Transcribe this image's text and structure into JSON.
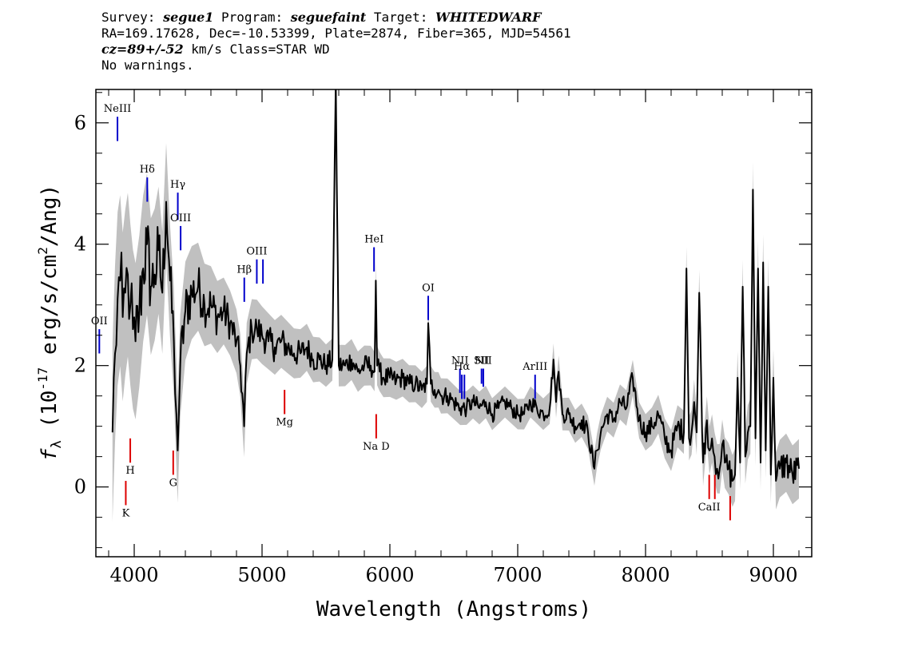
{
  "header": {
    "line1": {
      "survey_label": "Survey: ",
      "survey": "segue1",
      "program_label": " Program: ",
      "program": "seguefaint",
      "target_label": " Target: ",
      "target": "WHITEDWARF"
    },
    "line2": "RA=169.17628, Dec=-10.53399, Plate=2874, Fiber=365, MJD=54561",
    "line3": {
      "cz": "cz=89+/-52",
      "rest": " km/s Class=STAR WD"
    },
    "line4": "No warnings."
  },
  "chart_data": {
    "type": "line",
    "xlabel": "Wavelength (Angstroms)",
    "ylabel_parts": [
      "f",
      "λ",
      " (10",
      "-17",
      " erg/s/cm",
      "2",
      "/Ang)"
    ],
    "xlim": [
      3700,
      9300
    ],
    "ylim": [
      -1.15,
      6.55
    ],
    "x_ticks": [
      4000,
      5000,
      6000,
      7000,
      8000,
      9000
    ],
    "y_ticks": [
      0,
      2,
      4,
      6
    ],
    "x_minor_step": 200,
    "y_minor_step": 0.5,
    "colors": {
      "flux": "#000000",
      "error_band": "#c0c0c0",
      "emission": "#0000cc",
      "absorption": "#dd0000"
    },
    "series": [
      {
        "x": [
          3830,
          3850,
          3870,
          3890,
          3910,
          3930,
          3950,
          3970,
          3990,
          4010,
          4040,
          4070,
          4100,
          4130,
          4160,
          4190,
          4220,
          4250,
          4280,
          4310,
          4330,
          4340,
          4360,
          4400,
          4450,
          4500,
          4550,
          4600,
          4650,
          4700,
          4750,
          4800,
          4830,
          4860,
          4880,
          4920,
          4960,
          5000,
          5050,
          5100,
          5150,
          5200,
          5250,
          5300,
          5350,
          5400,
          5450,
          5500,
          5550,
          5577,
          5600,
          5650,
          5700,
          5750,
          5800,
          5850,
          5880,
          5890,
          5900,
          5920,
          5950,
          6000,
          6050,
          6100,
          6150,
          6200,
          6250,
          6290,
          6300,
          6320,
          6350,
          6380,
          6400,
          6450,
          6500,
          6550,
          6600,
          6650,
          6700,
          6750,
          6800,
          6850,
          6900,
          6950,
          7000,
          7050,
          7100,
          7150,
          7200,
          7250,
          7280,
          7300,
          7320,
          7350,
          7400,
          7450,
          7500,
          7550,
          7600,
          7620,
          7650,
          7700,
          7750,
          7800,
          7850,
          7900,
          7950,
          8000,
          8050,
          8100,
          8150,
          8200,
          8250,
          8300,
          8320,
          8340,
          8360,
          8380,
          8400,
          8420,
          8450,
          8480,
          8500,
          8520,
          8540,
          8560,
          8580,
          8600,
          8620,
          8650,
          8680,
          8700,
          8720,
          8740,
          8760,
          8780,
          8800,
          8820,
          8840,
          8860,
          8880,
          8900,
          8920,
          8940,
          8960,
          8980,
          9000,
          9020,
          9050,
          9100,
          9150,
          9200
        ],
        "y": [
          0.9,
          2.2,
          3.1,
          3.4,
          2.8,
          3.2,
          3.5,
          3.0,
          2.6,
          2.4,
          2.9,
          3.6,
          4.0,
          3.3,
          3.5,
          3.9,
          3.2,
          4.7,
          3.4,
          2.4,
          1.2,
          0.6,
          2.0,
          2.9,
          3.2,
          3.3,
          3.0,
          3.0,
          2.8,
          2.9,
          2.7,
          2.4,
          2.0,
          1.0,
          2.2,
          2.6,
          2.6,
          2.5,
          2.4,
          2.3,
          2.4,
          2.3,
          2.2,
          2.2,
          2.3,
          2.1,
          2.1,
          2.0,
          2.1,
          6.7,
          2.0,
          2.0,
          2.1,
          1.9,
          2.0,
          2.0,
          1.9,
          3.4,
          2.0,
          1.9,
          1.8,
          1.8,
          1.75,
          1.8,
          1.7,
          1.7,
          1.6,
          1.7,
          2.7,
          1.7,
          1.6,
          1.6,
          1.5,
          1.5,
          1.4,
          1.3,
          1.3,
          1.4,
          1.3,
          1.4,
          1.2,
          1.3,
          1.4,
          1.3,
          1.2,
          1.2,
          1.4,
          1.3,
          1.2,
          1.3,
          2.1,
          1.4,
          1.9,
          1.2,
          1.2,
          1.0,
          1.1,
          0.9,
          0.3,
          0.6,
          0.9,
          1.2,
          1.1,
          1.4,
          1.3,
          1.8,
          1.1,
          0.9,
          1.0,
          1.2,
          0.8,
          0.6,
          1.0,
          0.9,
          3.6,
          0.8,
          0.9,
          1.4,
          0.9,
          3.2,
          0.4,
          1.1,
          0.6,
          0.8,
          0.5,
          0.3,
          0.3,
          0.7,
          0.4,
          0.3,
          0.1,
          0.2,
          1.8,
          0.4,
          3.3,
          0.5,
          0.9,
          1.0,
          4.9,
          0.8,
          3.6,
          0.4,
          3.7,
          0.6,
          3.3,
          0.2,
          1.8,
          0.1,
          0.3,
          0.4,
          0.2,
          0.3
        ]
      }
    ],
    "error_band_halfwidth": [
      {
        "x": 3700,
        "v": 1.6
      },
      {
        "x": 4000,
        "v": 1.3
      },
      {
        "x": 4300,
        "v": 0.9
      },
      {
        "x": 4700,
        "v": 0.55
      },
      {
        "x": 5500,
        "v": 0.35
      },
      {
        "x": 7000,
        "v": 0.25
      },
      {
        "x": 8000,
        "v": 0.3
      },
      {
        "x": 8800,
        "v": 0.45
      },
      {
        "x": 9300,
        "v": 0.5
      }
    ],
    "emission_lines": [
      {
        "label": "NeIII",
        "wave": 3869,
        "y0": 5.7,
        "y1": 6.1
      },
      {
        "label": "Hδ",
        "wave": 4102,
        "y0": 4.7,
        "y1": 5.1
      },
      {
        "label": "Hγ",
        "wave": 4341,
        "y0": 4.4,
        "y1": 4.85
      },
      {
        "label": "OIII",
        "wave": 4363,
        "y0": 3.9,
        "y1": 4.3
      },
      {
        "label": "Hβ",
        "wave": 4861,
        "y0": 3.05,
        "y1": 3.45
      },
      {
        "label": "OIII",
        "wave": 4959,
        "y0": 3.35,
        "y1": 3.75
      },
      {
        "label": "",
        "wave": 5007,
        "y0": 3.35,
        "y1": 3.75
      },
      {
        "label": "HeI",
        "wave": 5876,
        "y0": 3.55,
        "y1": 3.95
      },
      {
        "label": "OI",
        "wave": 6300,
        "y0": 2.75,
        "y1": 3.15
      },
      {
        "label": "NII",
        "wave": 6548,
        "y0": 1.55,
        "y1": 1.95
      },
      {
        "label": "Hα",
        "wave": 6563,
        "y0": 1.45,
        "y1": 1.85
      },
      {
        "label": "",
        "wave": 6583,
        "y0": 1.45,
        "y1": 1.85
      },
      {
        "label": "SII",
        "wave": 6717,
        "y0": 1.7,
        "y1": 1.95
      },
      {
        "label": "NII",
        "wave": 6731,
        "y0": 1.65,
        "y1": 1.95
      },
      {
        "label": "ArIII",
        "wave": 7136,
        "y0": 1.45,
        "y1": 1.85
      },
      {
        "label": "OII",
        "wave": 3727,
        "y0": 2.2,
        "y1": 2.6
      }
    ],
    "absorption_lines": [
      {
        "label": "K",
        "wave": 3934,
        "y0": -0.3,
        "y1": 0.1
      },
      {
        "label": "H",
        "wave": 3969,
        "y0": 0.4,
        "y1": 0.8
      },
      {
        "label": "G",
        "wave": 4305,
        "y0": 0.2,
        "y1": 0.6
      },
      {
        "label": "Mg",
        "wave": 5176,
        "y0": 1.2,
        "y1": 1.6
      },
      {
        "label": "Na D",
        "wave": 5893,
        "y0": 0.8,
        "y1": 1.2
      },
      {
        "label": "CaII",
        "wave": 8498,
        "y0": -0.2,
        "y1": 0.2
      },
      {
        "label": "",
        "wave": 8542,
        "y0": -0.2,
        "y1": 0.2
      },
      {
        "label": "",
        "wave": 8662,
        "y0": -0.55,
        "y1": -0.15
      }
    ]
  }
}
